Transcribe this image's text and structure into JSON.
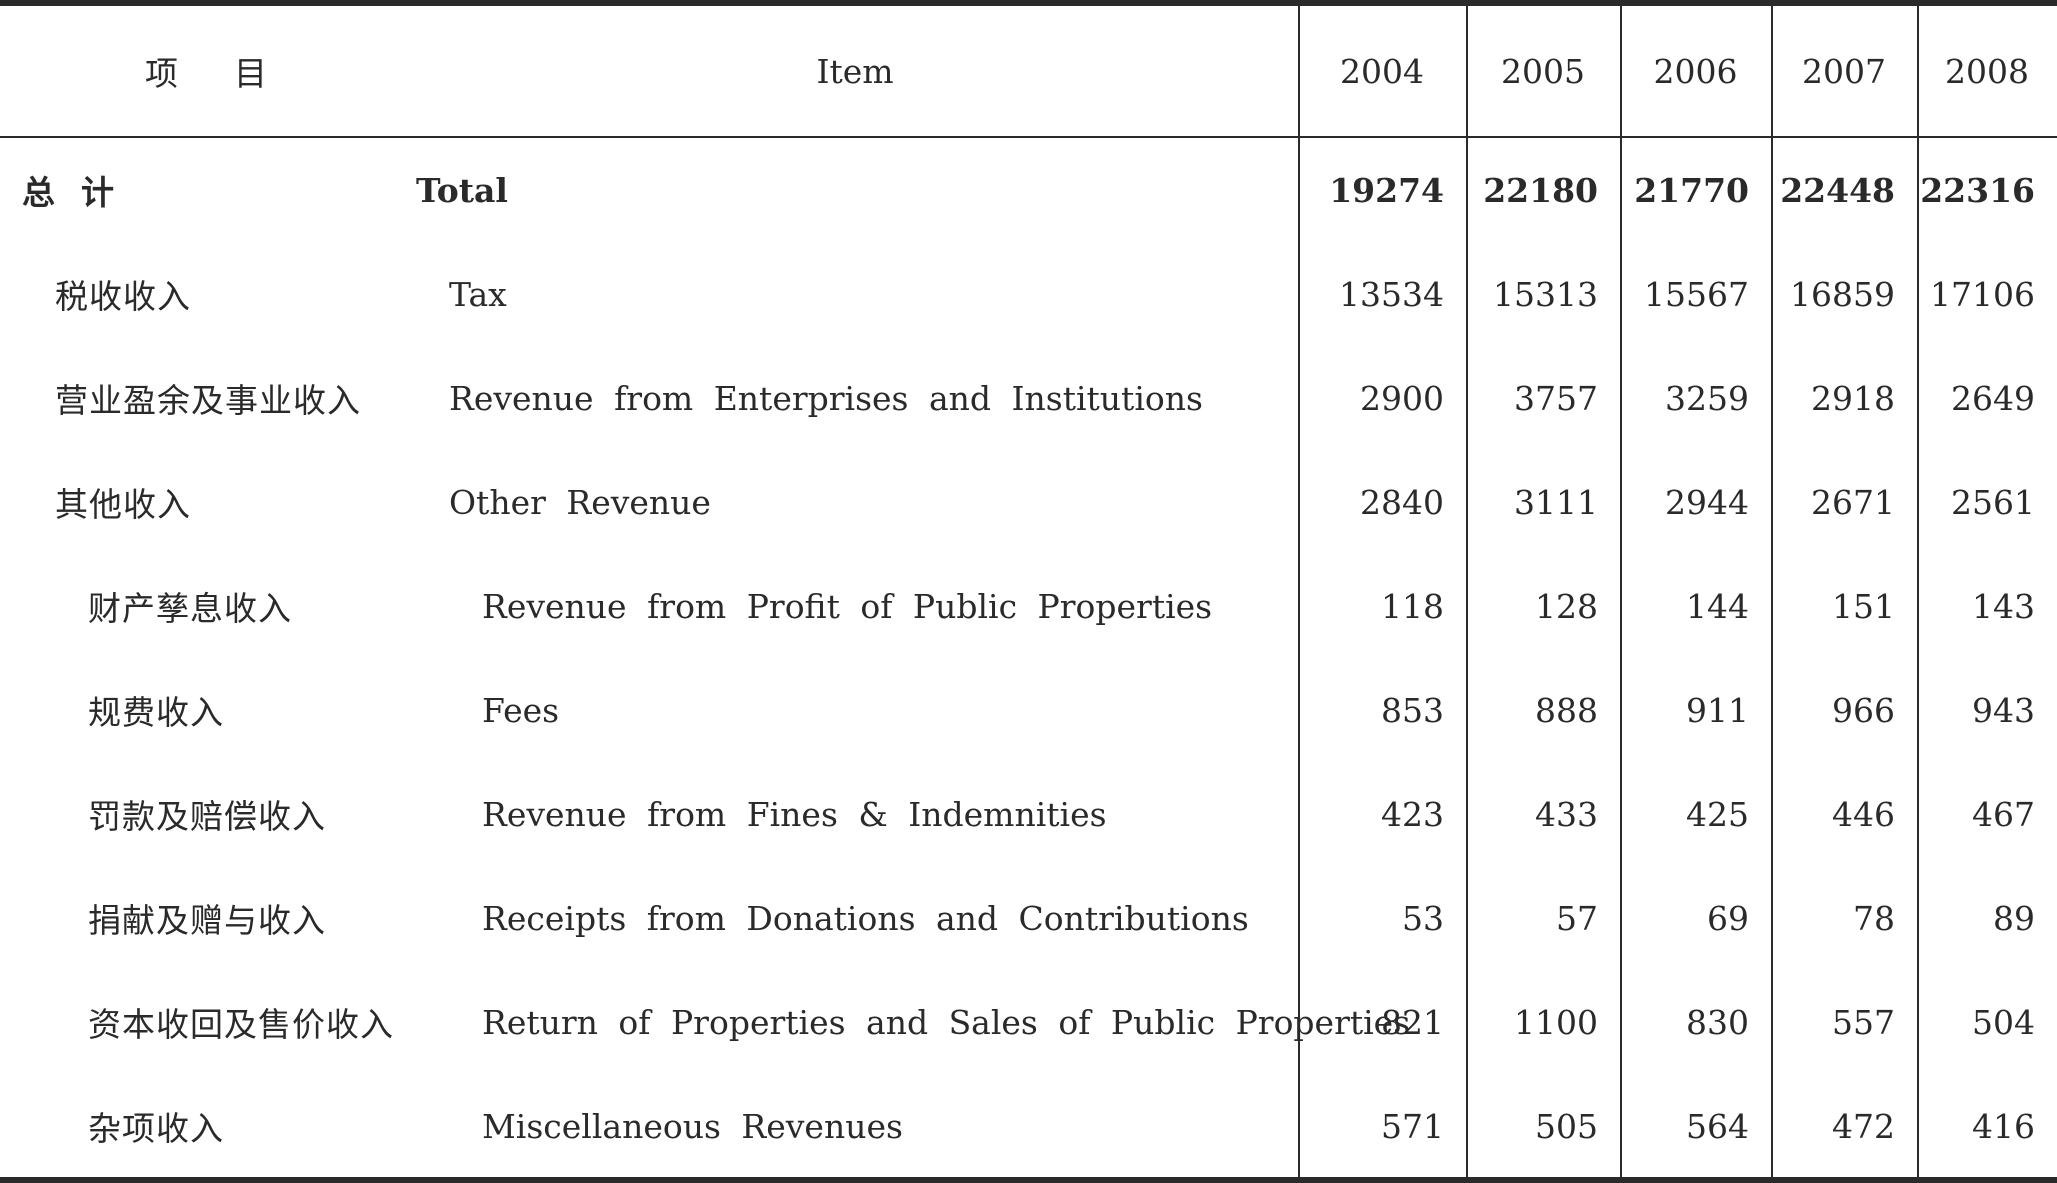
{
  "header": {
    "item_cn": "项目",
    "item_en": "Item",
    "years": [
      "2004",
      "2005",
      "2006",
      "2007",
      "2008"
    ]
  },
  "rows": [
    {
      "cn": "总  计",
      "en": "Total",
      "values": [
        "19274",
        "22180",
        "21770",
        "22448",
        "22316"
      ],
      "level": 0,
      "bold": true
    },
    {
      "cn": "税收收入",
      "en": "Tax",
      "values": [
        "13534",
        "15313",
        "15567",
        "16859",
        "17106"
      ],
      "level": 1,
      "bold": false
    },
    {
      "cn": "营业盈余及事业收入",
      "en": "Revenue from Enterprises and Institutions",
      "values": [
        "2900",
        "3757",
        "3259",
        "2918",
        "2649"
      ],
      "level": 1,
      "bold": false
    },
    {
      "cn": "其他收入",
      "en": "Other Revenue",
      "values": [
        "2840",
        "3111",
        "2944",
        "2671",
        "2561"
      ],
      "level": 1,
      "bold": false
    },
    {
      "cn": "财产孳息收入",
      "en": "Revenue from Profit of Public Properties",
      "values": [
        "118",
        "128",
        "144",
        "151",
        "143"
      ],
      "level": 2,
      "bold": false
    },
    {
      "cn": "规费收入",
      "en": "Fees",
      "values": [
        "853",
        "888",
        "911",
        "966",
        "943"
      ],
      "level": 2,
      "bold": false
    },
    {
      "cn": "罚款及赔偿收入",
      "en": "Revenue from Fines & Indemnities",
      "values": [
        "423",
        "433",
        "425",
        "446",
        "467"
      ],
      "level": 2,
      "bold": false
    },
    {
      "cn": "捐献及赠与收入",
      "en": "Receipts from Donations and Contributions",
      "values": [
        "53",
        "57",
        "69",
        "78",
        "89"
      ],
      "level": 2,
      "bold": false
    },
    {
      "cn": "资本收回及售价收入",
      "en": "Return of Properties and Sales of Public Properties",
      "values": [
        "821",
        "1100",
        "830",
        "557",
        "504"
      ],
      "level": 2,
      "bold": false
    },
    {
      "cn": "杂项收入",
      "en": "Miscellaneous Revenues",
      "values": [
        "571",
        "505",
        "564",
        "472",
        "416"
      ],
      "level": 2,
      "bold": false
    }
  ]
}
